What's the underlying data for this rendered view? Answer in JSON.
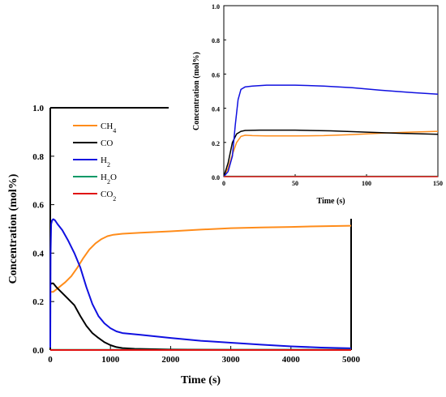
{
  "chart_data": [
    {
      "type": "line",
      "role": "main",
      "xlabel": "Time (s)",
      "ylabel": "Concentration (mol%)",
      "xlim": [
        0,
        5000
      ],
      "ylim": [
        0,
        1.0
      ],
      "xticks": [
        "0",
        "1000",
        "2000",
        "3000",
        "4000",
        "5000"
      ],
      "yticks": [
        "0.0",
        "0.2",
        "0.4",
        "0.6",
        "0.8",
        "1.0"
      ],
      "grid": false,
      "legend_position": "top-left",
      "series": [
        {
          "name": "CH4",
          "legend_base": "CH",
          "legend_sub": "4",
          "color": "#ff8c1a",
          "points": [
            [
              0,
              0.24
            ],
            [
              50,
              0.24
            ],
            [
              150,
              0.26
            ],
            [
              250,
              0.28
            ],
            [
              350,
              0.305
            ],
            [
              450,
              0.34
            ],
            [
              550,
              0.38
            ],
            [
              650,
              0.415
            ],
            [
              750,
              0.44
            ],
            [
              850,
              0.458
            ],
            [
              950,
              0.47
            ],
            [
              1050,
              0.476
            ],
            [
              1200,
              0.48
            ],
            [
              1500,
              0.484
            ],
            [
              2000,
              0.49
            ],
            [
              2500,
              0.497
            ],
            [
              3000,
              0.503
            ],
            [
              3500,
              0.506
            ],
            [
              4000,
              0.508
            ],
            [
              4500,
              0.511
            ],
            [
              5000,
              0.513
            ]
          ]
        },
        {
          "name": "CO",
          "legend_base": "CO",
          "legend_sub": "",
          "color": "#000000",
          "points": [
            [
              0,
              0.27
            ],
            [
              20,
              0.275
            ],
            [
              50,
              0.275
            ],
            [
              100,
              0.26
            ],
            [
              200,
              0.235
            ],
            [
              300,
              0.21
            ],
            [
              400,
              0.185
            ],
            [
              500,
              0.14
            ],
            [
              600,
              0.1
            ],
            [
              700,
              0.07
            ],
            [
              800,
              0.05
            ],
            [
              900,
              0.032
            ],
            [
              1000,
              0.02
            ],
            [
              1100,
              0.012
            ],
            [
              1200,
              0.008
            ],
            [
              1400,
              0.005
            ],
            [
              2000,
              0.002
            ],
            [
              3000,
              0.001
            ],
            [
              5000,
              0.001
            ]
          ]
        },
        {
          "name": "H2",
          "legend_base": "H",
          "legend_sub": "2",
          "color": "#1010e0",
          "points": [
            [
              0,
              0.01
            ],
            [
              5,
              0.4
            ],
            [
              15,
              0.52
            ],
            [
              30,
              0.535
            ],
            [
              50,
              0.54
            ],
            [
              80,
              0.535
            ],
            [
              120,
              0.52
            ],
            [
              200,
              0.495
            ],
            [
              300,
              0.45
            ],
            [
              400,
              0.4
            ],
            [
              500,
              0.34
            ],
            [
              600,
              0.26
            ],
            [
              700,
              0.19
            ],
            [
              800,
              0.14
            ],
            [
              900,
              0.11
            ],
            [
              1000,
              0.09
            ],
            [
              1100,
              0.077
            ],
            [
              1200,
              0.07
            ],
            [
              1500,
              0.063
            ],
            [
              2000,
              0.05
            ],
            [
              2500,
              0.038
            ],
            [
              3000,
              0.03
            ],
            [
              3500,
              0.022
            ],
            [
              4000,
              0.015
            ],
            [
              4500,
              0.01
            ],
            [
              5000,
              0.007
            ]
          ]
        },
        {
          "name": "H2O",
          "legend_base": "H",
          "legend_sub": "2",
          "legend_tail": "O",
          "color": "#009966",
          "points": [
            [
              0,
              0.001
            ],
            [
              5000,
              0.001
            ]
          ]
        },
        {
          "name": "CO2",
          "legend_base": "CO",
          "legend_sub": "2",
          "color": "#e01010",
          "points": [
            [
              0,
              0.0
            ],
            [
              5000,
              0.0
            ]
          ]
        }
      ]
    },
    {
      "type": "line",
      "role": "inset",
      "xlabel": "Time (s)",
      "ylabel": "Concentration (mol%)",
      "xlim": [
        0,
        150
      ],
      "ylim": [
        0,
        1.0
      ],
      "xticks": [
        "0",
        "50",
        "100",
        "150"
      ],
      "yticks": [
        "0.0",
        "0.2",
        "0.4",
        "0.6",
        "0.8",
        "1.0"
      ],
      "grid": false,
      "series": [
        {
          "name": "CH4",
          "color": "#ff8c1a",
          "points": [
            [
              0,
              0.0
            ],
            [
              3,
              0.05
            ],
            [
              6,
              0.13
            ],
            [
              9,
              0.2
            ],
            [
              12,
              0.235
            ],
            [
              15,
              0.242
            ],
            [
              20,
              0.24
            ],
            [
              30,
              0.238
            ],
            [
              50,
              0.238
            ],
            [
              70,
              0.24
            ],
            [
              90,
              0.246
            ],
            [
              110,
              0.254
            ],
            [
              130,
              0.26
            ],
            [
              150,
              0.265
            ]
          ]
        },
        {
          "name": "CO",
          "color": "#000000",
          "points": [
            [
              0,
              0.0
            ],
            [
              3,
              0.08
            ],
            [
              6,
              0.2
            ],
            [
              9,
              0.25
            ],
            [
              12,
              0.265
            ],
            [
              15,
              0.27
            ],
            [
              25,
              0.272
            ],
            [
              50,
              0.272
            ],
            [
              75,
              0.268
            ],
            [
              100,
              0.26
            ],
            [
              125,
              0.253
            ],
            [
              150,
              0.248
            ]
          ]
        },
        {
          "name": "H2",
          "color": "#1010e0",
          "points": [
            [
              0,
              0.0
            ],
            [
              3,
              0.03
            ],
            [
              6,
              0.12
            ],
            [
              8,
              0.3
            ],
            [
              10,
              0.45
            ],
            [
              12,
              0.51
            ],
            [
              15,
              0.525
            ],
            [
              20,
              0.53
            ],
            [
              30,
              0.535
            ],
            [
              50,
              0.535
            ],
            [
              70,
              0.53
            ],
            [
              90,
              0.52
            ],
            [
              110,
              0.505
            ],
            [
              130,
              0.493
            ],
            [
              150,
              0.482
            ]
          ]
        },
        {
          "name": "H2O",
          "color": "#009966",
          "points": [
            [
              0,
              0.002
            ],
            [
              150,
              0.002
            ]
          ]
        },
        {
          "name": "CO2",
          "color": "#e01010",
          "points": [
            [
              0,
              0.0
            ],
            [
              150,
              0.0
            ]
          ]
        }
      ]
    }
  ]
}
